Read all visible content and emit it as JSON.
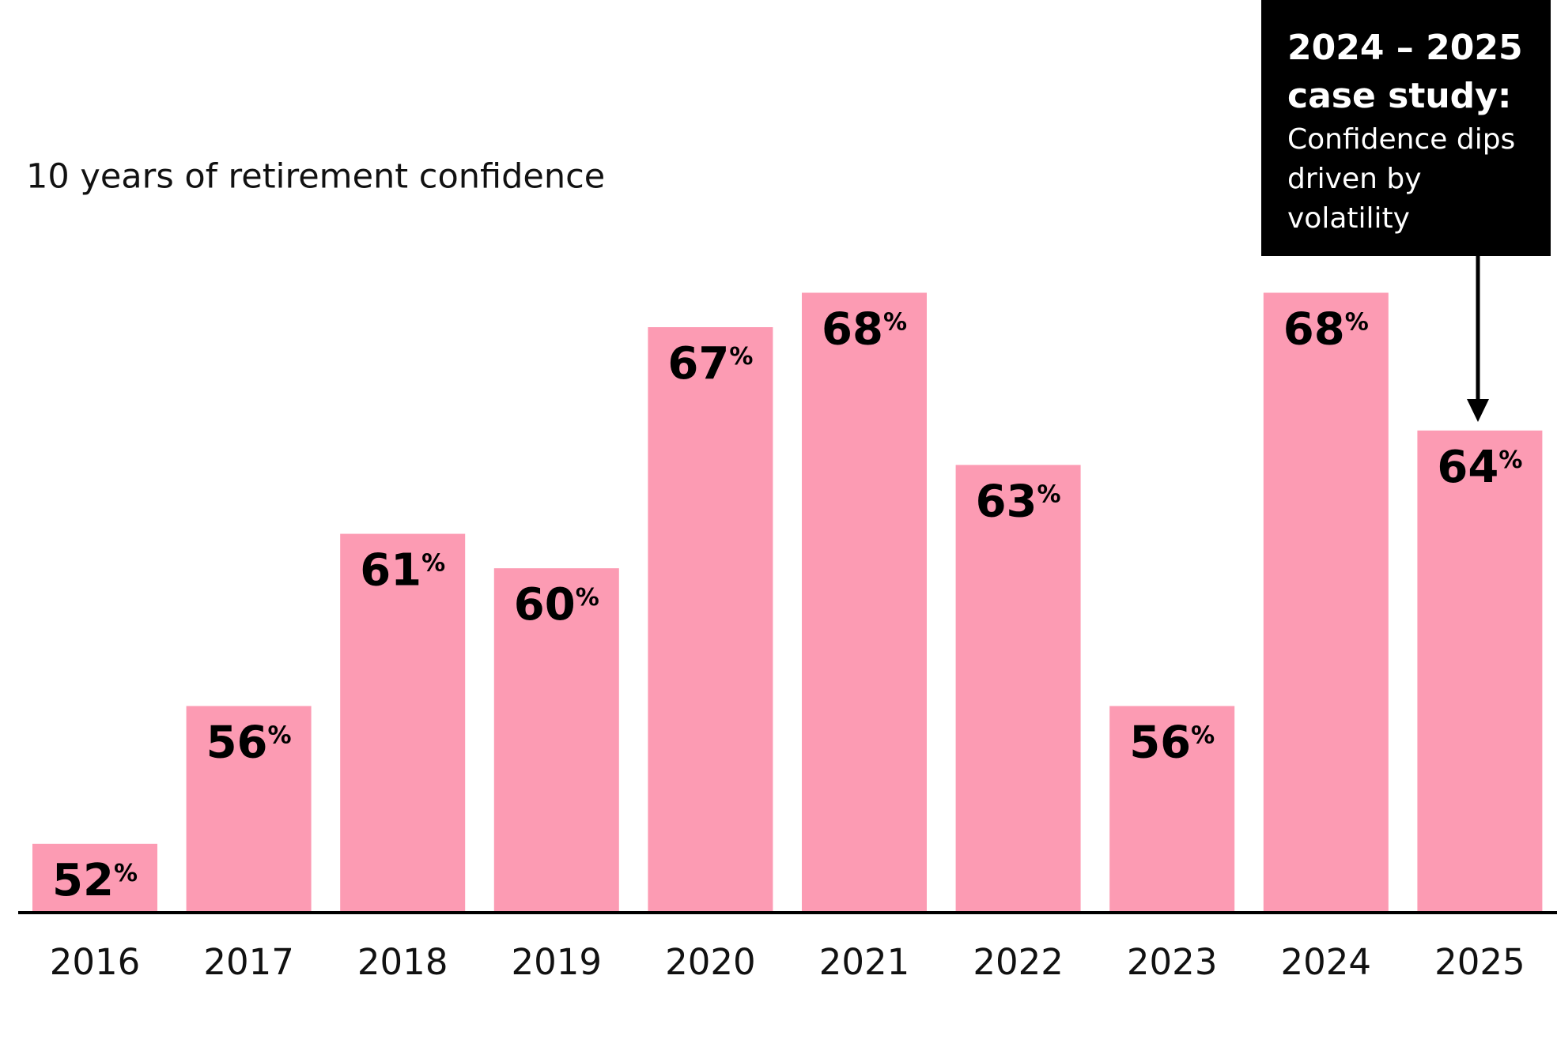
{
  "chart_data": {
    "type": "bar",
    "title": "10 years of retirement confidence",
    "categories": [
      "2016",
      "2017",
      "2018",
      "2019",
      "2020",
      "2021",
      "2022",
      "2023",
      "2024",
      "2025"
    ],
    "values": [
      52,
      56,
      61,
      60,
      67,
      68,
      63,
      56,
      68,
      64
    ],
    "value_labels": [
      "52%",
      "56%",
      "61%",
      "60%",
      "67%",
      "68%",
      "63%",
      "56%",
      "68%",
      "64%"
    ],
    "color": "#fc9bb3",
    "ylim": [
      50,
      76.5
    ],
    "annotation": {
      "title": "2024 – 2025 case study:",
      "text": "Confidence dips driven by volatility"
    }
  }
}
